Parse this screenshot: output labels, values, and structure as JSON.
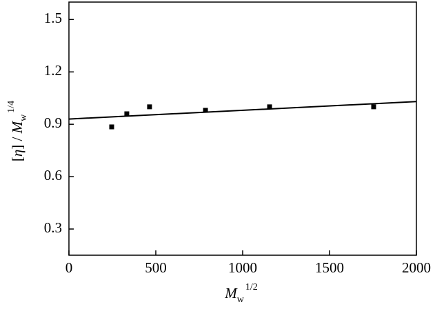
{
  "chart_data": {
    "type": "scatter",
    "xlabel_parts": [
      "M",
      "w",
      "1/2"
    ],
    "ylabel_parts": [
      "[",
      "η",
      "] / ",
      "M",
      "w",
      "1/4"
    ],
    "xlim": [
      0,
      2000
    ],
    "xticks": [
      0,
      500,
      1000,
      1500,
      2000
    ],
    "ylim": [
      0.15,
      1.6
    ],
    "yticks": [
      0.3,
      0.6,
      0.9,
      1.2,
      1.5
    ],
    "series": [
      {
        "type": "scatter",
        "color": "#000000",
        "x": [
          246,
          333,
          464,
          786,
          1155,
          1754
        ],
        "values": [
          0.885,
          0.96,
          1.0,
          0.98,
          1.0,
          1.0
        ]
      },
      {
        "type": "line",
        "color": "#000000",
        "x": [
          0,
          2000
        ],
        "values": [
          0.93,
          1.03
        ]
      }
    ]
  }
}
